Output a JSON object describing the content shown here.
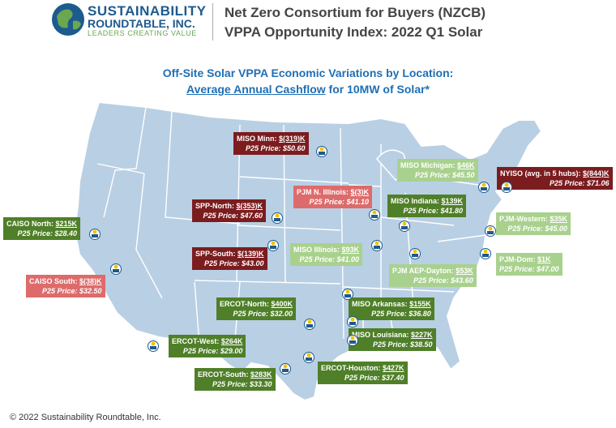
{
  "header": {
    "logo_line1": "SUSTAINABILITY",
    "logo_line2": "ROUNDTABLE, INC.",
    "logo_line3": "LEADERS CREATING VALUE",
    "title_line1": "Net Zero Consortium for Buyers (NZCB)",
    "title_line2": "VPPA Opportunity Index: 2022 Q1 Solar"
  },
  "subtitle": {
    "line1": "Off-Site Solar VPPA Economic Variations by Location:",
    "line2_underlined": "Average Annual Cashflow",
    "line2_rest": " for 10MW of Solar*"
  },
  "locations": [
    {
      "name": "MISO Minn: ",
      "value": "$(319)K",
      "price": "P25 Price: $50.60",
      "color": "#7b1c1f"
    },
    {
      "name": "MISO Michigan: ",
      "value": "$46K",
      "price": "P25 Price: $45.50",
      "color": "#a9d18e"
    },
    {
      "name": "NYISO (avg. in 5 hubs): ",
      "value": "$(844)K",
      "price": "P25 Price: $71.06",
      "color": "#7b1c1f"
    },
    {
      "name": "PJM N. Illinois: ",
      "value": "$(3)K",
      "price": "P25 Price: $41.10",
      "color": "#de6b6b"
    },
    {
      "name": "MISO Indiana: ",
      "value": "$139K",
      "price": "P25 Price: $41.80",
      "color": "#4f7f28"
    },
    {
      "name": "SPP-North: ",
      "value": "$(353)K",
      "price": "P25 Price: $47.60",
      "color": "#7b1c1f"
    },
    {
      "name": "CAISO North: ",
      "value": "$215K",
      "price": "P25 Price: $28.40",
      "color": "#4f7f28"
    },
    {
      "name": "PJM-Western: ",
      "value": "$35K",
      "price": "P25 Price: $45.00",
      "color": "#a9d18e"
    },
    {
      "name": "SPP-South: ",
      "value": "$(139)K",
      "price": "P25 Price: $43.00",
      "color": "#7b1c1f"
    },
    {
      "name": "MISO Illinois: ",
      "value": "$93K",
      "price": "P25 Price: $41.00",
      "color": "#a9d18e"
    },
    {
      "name": "PJM-Dom: ",
      "value": "$1K",
      "price": "P25 Price: $47.00",
      "color": "#a9d18e"
    },
    {
      "name": "CAISO South: ",
      "value": "$(38)K",
      "price": "P25 Price: $32.50",
      "color": "#de6b6b"
    },
    {
      "name": "PJM AEP-Dayton: ",
      "value": "$53K",
      "price": "P25 Price: $43.60",
      "color": "#a9d18e"
    },
    {
      "name": "ERCOT-North: ",
      "value": "$400K",
      "price": "P25 Price: $32.00",
      "color": "#4f7f28"
    },
    {
      "name": "MISO Arkansas: ",
      "value": "$155K",
      "price": "P25 Price: $36.80",
      "color": "#4f7f28"
    },
    {
      "name": "ERCOT-West: ",
      "value": "$264K",
      "price": "P25 Price: $29.00",
      "color": "#4f7f28"
    },
    {
      "name": "MISO Louisiana: ",
      "value": "$227K",
      "price": "P25 Price: $38.50",
      "color": "#4f7f28"
    },
    {
      "name": "ERCOT-Houston: ",
      "value": "$427K",
      "price": "P25 Price: $37.40",
      "color": "#4f7f28"
    },
    {
      "name": "ERCOT-South: ",
      "value": "$283K",
      "price": "P25 Price: $33.30",
      "color": "#4f7f28"
    }
  ],
  "footer": "© 2022 Sustainability Roundtable, Inc."
}
